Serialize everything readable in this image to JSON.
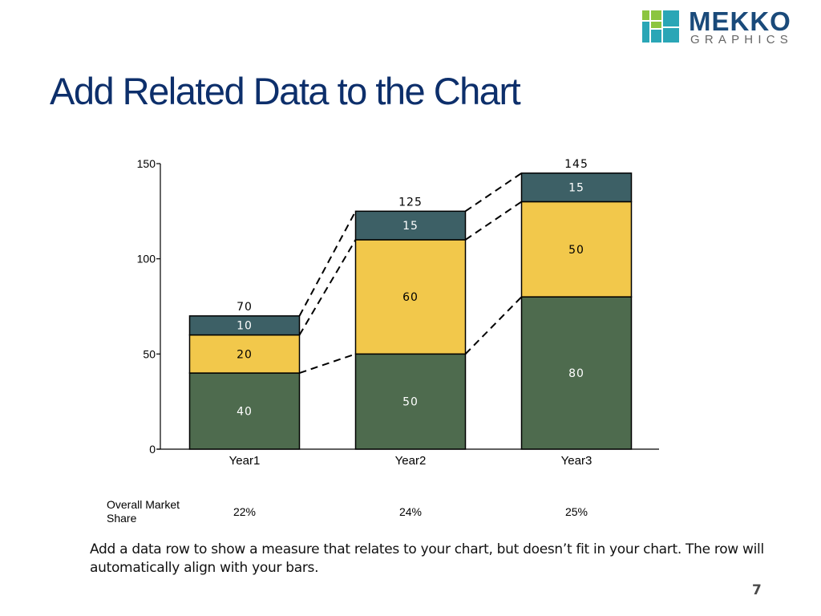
{
  "logo": {
    "word1": "MEKKO",
    "word2": "GRAPHICS",
    "colors": {
      "teal": "#2aa6b6",
      "green": "#8cc540",
      "navy": "#1a4a7a",
      "gray": "#666666"
    }
  },
  "slide": {
    "title": "Add Related Data to the Chart",
    "title_color": "#0d2f6b",
    "caption": "Add a data row to show a measure that relates to your chart, but doesn’t fit in your chart.  The row will automatically align with your bars.",
    "page_number": "7"
  },
  "data_row": {
    "label": "Overall Market Share",
    "values": [
      "22%",
      "24%",
      "25%"
    ]
  },
  "chart_data": {
    "type": "bar",
    "stacked": true,
    "categories": [
      "Year1",
      "Year2",
      "Year3"
    ],
    "series": [
      {
        "values": [
          40,
          50,
          80
        ],
        "color": "#4e6b4e"
      },
      {
        "values": [
          20,
          60,
          50
        ],
        "color": "#f2c84b"
      },
      {
        "values": [
          10,
          15,
          15
        ],
        "color": "#3d6066"
      }
    ],
    "totals": [
      70,
      125,
      145
    ],
    "ylim": [
      0,
      150
    ],
    "yticks": [
      0,
      50,
      100,
      150
    ],
    "series_connectors": "dashed",
    "legend": "none",
    "grid": false
  }
}
